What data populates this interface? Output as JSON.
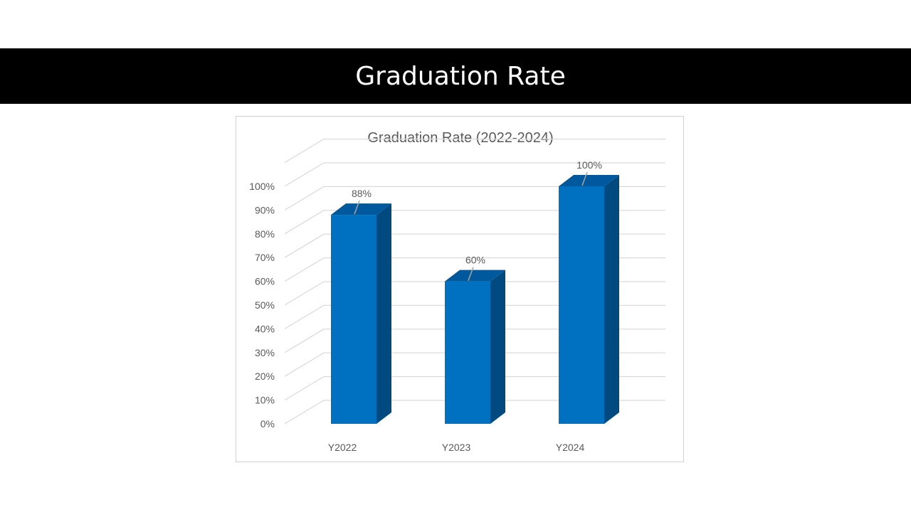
{
  "slide": {
    "title": "Graduation Rate"
  },
  "chart_data": {
    "type": "bar",
    "title": "Graduation Rate (2022-2024)",
    "categories": [
      "Y2022",
      "Y2023",
      "Y2024"
    ],
    "values": [
      88,
      60,
      100
    ],
    "data_labels": [
      "88%",
      "60%",
      "100%"
    ],
    "ylim": [
      0,
      100
    ],
    "y_ticks": [
      "0%",
      "10%",
      "20%",
      "30%",
      "40%",
      "50%",
      "60%",
      "70%",
      "80%",
      "90%",
      "100%"
    ],
    "xlabel": "",
    "ylabel": "",
    "grid": true,
    "style": "3d-column",
    "colors": {
      "front": "#0070C0",
      "top": "#00599C",
      "side": "#004A80",
      "grid": "#D9D9D9",
      "text": "#595959"
    }
  }
}
